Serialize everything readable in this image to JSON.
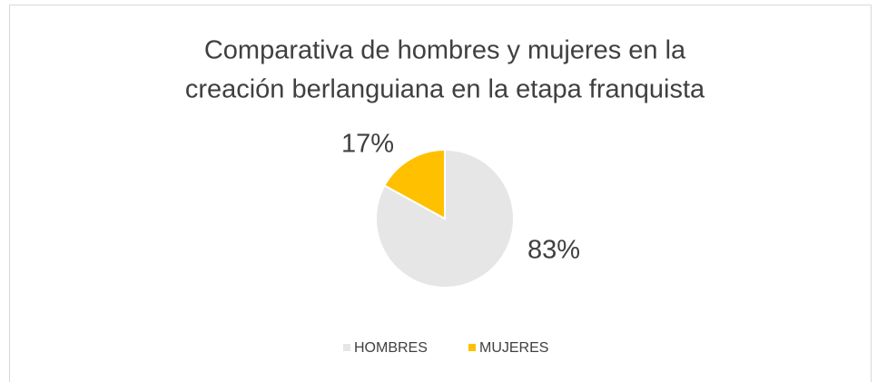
{
  "chart_data": {
    "type": "pie",
    "title": [
      "Comparativa de hombres y mujeres en la",
      "creación berlanguiana en la etapa franquista"
    ],
    "categories": [
      "HOMBRES",
      "MUJERES"
    ],
    "values": [
      83,
      17
    ],
    "value_labels": [
      "83%",
      "17%"
    ],
    "colors": [
      "#e7e6e6",
      "#ffc000"
    ],
    "legend": "bottom"
  }
}
